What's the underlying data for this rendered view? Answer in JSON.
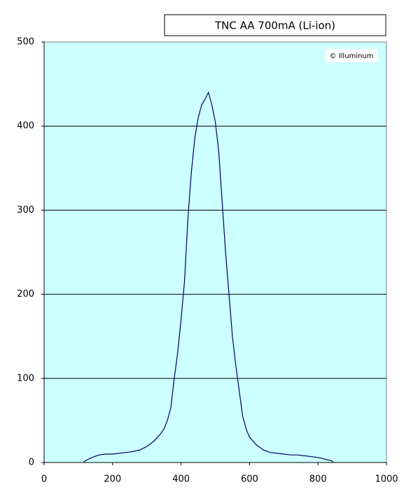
{
  "chart_data": {
    "type": "line",
    "title": "TNC AA 700mA (Li-ion)",
    "annotation": "© Illuminum",
    "x": [
      115,
      120,
      140,
      160,
      180,
      200,
      220,
      240,
      260,
      280,
      300,
      320,
      340,
      350,
      360,
      370,
      380,
      390,
      400,
      410,
      420,
      430,
      440,
      450,
      460,
      470,
      480,
      490,
      500,
      510,
      520,
      530,
      540,
      550,
      560,
      570,
      580,
      590,
      600,
      620,
      640,
      660,
      680,
      700,
      720,
      740,
      760,
      780,
      800,
      820,
      840,
      845
    ],
    "series": [
      {
        "name": "TNC AA 700mA (Li-ion)",
        "color": "#000066",
        "values": [
          0,
          2,
          6,
          9,
          10,
          10,
          11,
          12,
          13,
          15,
          19,
          25,
          34,
          40,
          50,
          65,
          100,
          130,
          170,
          215,
          290,
          345,
          385,
          410,
          425,
          432,
          440,
          425,
          405,
          370,
          310,
          250,
          200,
          150,
          115,
          85,
          55,
          40,
          30,
          21,
          15,
          12,
          11,
          10,
          9,
          9,
          8,
          7,
          6,
          4,
          2,
          0
        ]
      }
    ],
    "xlim": [
      0,
      1000
    ],
    "xticks": [
      0,
      200,
      400,
      600,
      800,
      1000
    ],
    "ylim": [
      0,
      500
    ],
    "yticks": [
      0,
      100,
      200,
      300,
      400,
      500
    ],
    "grid": true,
    "background": "#ccffff"
  }
}
